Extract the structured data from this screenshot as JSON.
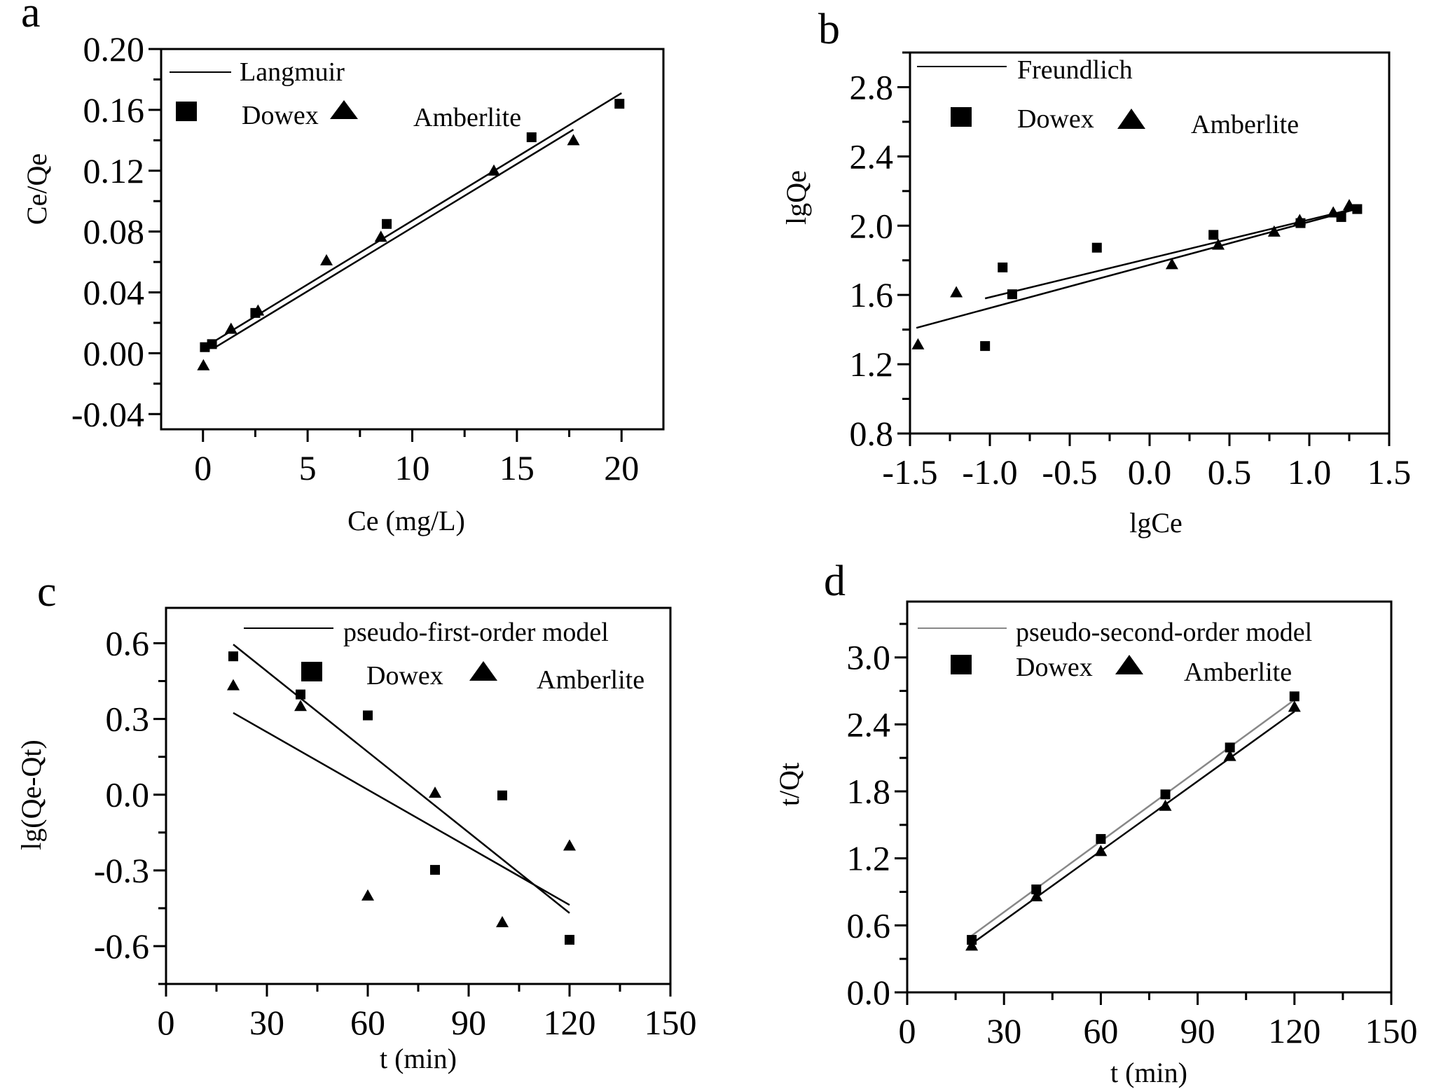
{
  "figure": {
    "panels": [
      "a",
      "b",
      "c",
      "d"
    ]
  },
  "chart_data": [
    {
      "panel_label": "a",
      "type": "scatter",
      "title": "",
      "xlabel": "Ce (mg/L)",
      "ylabel": "Ce/Qe",
      "xlim": [
        -2,
        22
      ],
      "ylim": [
        -0.05,
        0.2
      ],
      "xticks": [
        0,
        5,
        10,
        15,
        20
      ],
      "xtick_labels": [
        "0",
        "5",
        "10",
        "15",
        "20"
      ],
      "yticks": [
        -0.04,
        0.0,
        0.04,
        0.08,
        0.12,
        0.16,
        0.2
      ],
      "ytick_labels": [
        "-0.04",
        "0.00",
        "0.04",
        "0.08",
        "0.12",
        "0.16",
        "0.20"
      ],
      "grid": false,
      "legend": {
        "placement": "top-left",
        "line_label": "Langmuir",
        "series_labels": [
          "Dowex",
          "Amberlite"
        ]
      },
      "series": [
        {
          "name": "Dowex",
          "marker": "square",
          "x": [
            0.09,
            0.43,
            2.5,
            8.78,
            15.7,
            19.9
          ],
          "y": [
            0.004,
            0.006,
            0.0265,
            0.085,
            0.142,
            0.164
          ]
        },
        {
          "name": "Amberlite",
          "marker": "triangle",
          "x": [
            0.02,
            1.34,
            2.63,
            5.9,
            8.5,
            13.9,
            17.7
          ],
          "y": [
            -0.008,
            0.016,
            0.028,
            0.061,
            0.0765,
            0.12,
            0.14
          ]
        }
      ],
      "fits": [
        {
          "name": "Langmuir Dowex",
          "color": "#000000",
          "x": [
            0.44,
            20.0
          ],
          "y": [
            0.007,
            0.171
          ]
        },
        {
          "name": "Langmuir Amberlite",
          "color": "#000000",
          "x": [
            0.6,
            17.7
          ],
          "y": [
            0.004,
            0.147
          ]
        }
      ]
    },
    {
      "panel_label": "b",
      "type": "scatter",
      "title": "",
      "xlabel": "lgCe",
      "ylabel": "lgQe",
      "xlim": [
        -1.5,
        1.5
      ],
      "ylim": [
        0.8,
        3.0
      ],
      "xticks": [
        -1.5,
        -1.0,
        -0.5,
        0.0,
        0.5,
        1.0,
        1.5
      ],
      "xtick_labels": [
        "-1.5",
        "-1.0",
        "-0.5",
        "0.0",
        "0.5",
        "1.0",
        "1.5"
      ],
      "yticks": [
        0.8,
        1.2,
        1.6,
        2.0,
        2.4,
        2.8
      ],
      "ytick_labels": [
        "0.8",
        "1.2",
        "1.6",
        "2.0",
        "2.4",
        "2.8"
      ],
      "grid": false,
      "legend": {
        "placement": "top-left",
        "line_label": "Freundlich",
        "series_labels": [
          "Dowex",
          "Amberlite"
        ]
      },
      "series": [
        {
          "name": "Dowex",
          "marker": "square",
          "x": [
            -1.03,
            -0.92,
            -0.86,
            -0.33,
            0.4,
            0.945,
            1.2,
            1.3
          ],
          "y": [
            1.305,
            1.759,
            1.604,
            1.873,
            1.947,
            2.015,
            2.05,
            2.096
          ]
        },
        {
          "name": "Amberlite",
          "marker": "triangle",
          "x": [
            -1.45,
            -1.21,
            0.14,
            0.43,
            0.78,
            0.94,
            1.15,
            1.25
          ],
          "y": [
            1.314,
            1.615,
            1.777,
            1.89,
            1.965,
            2.032,
            2.076,
            2.118
          ]
        }
      ],
      "fits": [
        {
          "name": "Freundlich Dowex",
          "color": "#000000",
          "x": [
            -1.03,
            1.29
          ],
          "y": [
            1.58,
            2.1
          ]
        },
        {
          "name": "Freundlich Amberlite",
          "color": "#000000",
          "x": [
            -1.46,
            1.27
          ],
          "y": [
            1.41,
            2.09
          ]
        }
      ]
    },
    {
      "panel_label": "c",
      "type": "scatter",
      "title": "",
      "xlabel": "t (min)",
      "ylabel": "lg(Qe-Qt)",
      "xlim": [
        0,
        150
      ],
      "ylim": [
        -0.75,
        0.74
      ],
      "xticks": [
        0,
        30,
        60,
        90,
        120,
        150
      ],
      "xtick_labels": [
        "0",
        "30",
        "60",
        "90",
        "120",
        "150"
      ],
      "yticks": [
        -0.6,
        -0.3,
        0.0,
        0.3,
        0.6
      ],
      "ytick_labels": [
        "-0.6",
        "-0.3",
        "0.0",
        "0.3",
        "0.6"
      ],
      "grid": false,
      "legend": {
        "placement": "top-right",
        "line_label": "pseudo-first-order model",
        "series_labels": [
          "Dowex",
          "Amberlite"
        ]
      },
      "series": [
        {
          "name": "Dowex",
          "marker": "square",
          "x": [
            20,
            40,
            60,
            80,
            100,
            120
          ],
          "y": [
            0.548,
            0.397,
            0.314,
            -0.298,
            -0.003,
            -0.575
          ]
        },
        {
          "name": "Amberlite",
          "marker": "triangle",
          "x": [
            20,
            40,
            60,
            80,
            100,
            120
          ],
          "y": [
            0.433,
            0.351,
            -0.4,
            0.007,
            -0.506,
            -0.202
          ]
        }
      ],
      "fits": [
        {
          "name": "pseudo-first-order fit 1",
          "color": "#000000",
          "x": [
            20,
            120
          ],
          "y": [
            0.595,
            -0.469
          ]
        },
        {
          "name": "pseudo-first-order fit 2",
          "color": "#000000",
          "x": [
            20,
            120
          ],
          "y": [
            0.324,
            -0.437
          ]
        }
      ]
    },
    {
      "panel_label": "d",
      "type": "scatter",
      "title": "",
      "xlabel": "t (min)",
      "ylabel": "t/Qt",
      "xlim": [
        0,
        150
      ],
      "ylim": [
        0,
        3.5
      ],
      "xticks": [
        0,
        30,
        60,
        90,
        120,
        150
      ],
      "xtick_labels": [
        "0",
        "30",
        "60",
        "90",
        "120",
        "150"
      ],
      "yticks": [
        0.0,
        0.6,
        1.2,
        1.8,
        2.4,
        3.0
      ],
      "ytick_labels": [
        "0.0",
        "0.6",
        "1.2",
        "1.8",
        "2.4",
        "3.0"
      ],
      "grid": false,
      "legend": {
        "placement": "top-right",
        "line_label": "pseudo-second-order model",
        "series_labels": [
          "Dowex",
          "Amberlite"
        ]
      },
      "series": [
        {
          "name": "Dowex",
          "marker": "square",
          "x": [
            20,
            40,
            60,
            80,
            100,
            120
          ],
          "y": [
            0.47,
            0.922,
            1.374,
            1.773,
            2.193,
            2.651
          ]
        },
        {
          "name": "Amberlite",
          "marker": "triangle",
          "x": [
            20,
            40,
            60,
            80,
            100,
            120
          ],
          "y": [
            0.418,
            0.859,
            1.265,
            1.67,
            2.116,
            2.557
          ]
        }
      ],
      "fits": [
        {
          "name": "pseudo-second-order Dowex",
          "color": "#888888",
          "x": [
            20,
            120
          ],
          "y": [
            0.508,
            2.62
          ]
        },
        {
          "name": "pseudo-second-order Amberlite",
          "color": "#000000",
          "x": [
            20,
            120
          ],
          "y": [
            0.435,
            2.515
          ]
        }
      ]
    }
  ]
}
